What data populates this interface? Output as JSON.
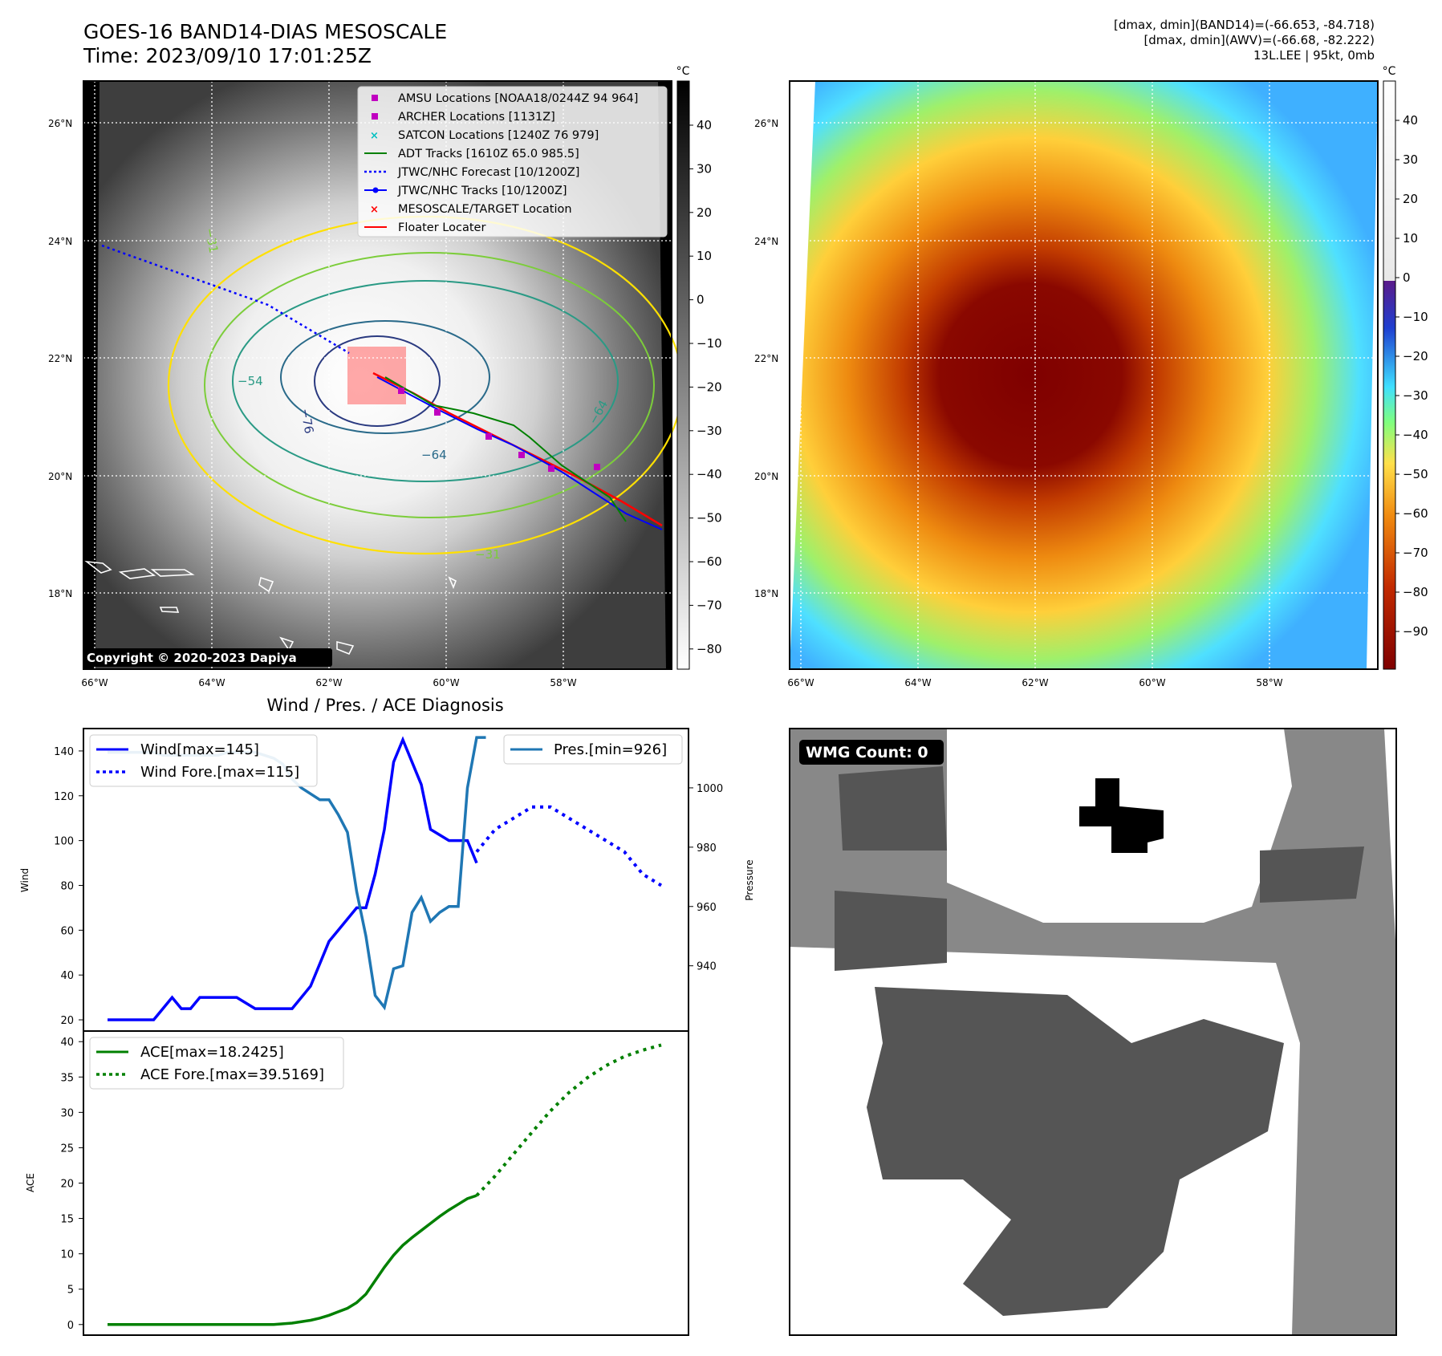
{
  "header": {
    "title_line1": "GOES-16 BAND14-DIAS MESOSCALE",
    "title_line2": "Time: 2023/09/10 17:01:25Z",
    "stats_line1": "[dmax, dmin](BAND14)=(-66.653, -84.718)",
    "stats_line2": "[dmax, dmin](AWV)=(-66.68, -82.222)",
    "stats_line3": "13L.LEE | 95kt, 0mb"
  },
  "map_left": {
    "colorbar_unit": "°C",
    "colorbar_ticks": [
      "40",
      "30",
      "20",
      "10",
      "0",
      "−10",
      "−20",
      "−30",
      "−40",
      "−50",
      "−60",
      "−70",
      "−80"
    ],
    "lat_labels": [
      "26°N",
      "24°N",
      "22°N",
      "20°N",
      "18°N"
    ],
    "lon_labels": [
      "66°W",
      "64°W",
      "62°W",
      "60°W",
      "58°W"
    ],
    "contour_labels": [
      "−31",
      "−54",
      "−76",
      "−64",
      "−54",
      "−64",
      "−31"
    ],
    "copyright": "Copyright © 2020-2023 Dapiya",
    "legend": [
      {
        "label": "AMSU Locations [NOAA18/0244Z 94 964]",
        "marker": "square",
        "color": "#c000c0"
      },
      {
        "label": "ARCHER Locations [1131Z]",
        "marker": "square",
        "color": "#c000c0"
      },
      {
        "label": "SATCON Locations [1240Z 76 979]",
        "marker": "x",
        "color": "#00c0c0"
      },
      {
        "label": "ADT Tracks [1610Z 65.0 985.5]",
        "marker": "line",
        "color": "#008000"
      },
      {
        "label": "JTWC/NHC Forecast [10/1200Z]",
        "marker": "dotted",
        "color": "#0000ff"
      },
      {
        "label": "JTWC/NHC Tracks [10/1200Z]",
        "marker": "line-dot",
        "color": "#0000ff"
      },
      {
        "label": "MESOSCALE/TARGET Location",
        "marker": "x",
        "color": "#ff0000"
      },
      {
        "label": "Floater Locater",
        "marker": "line",
        "color": "#ff0000"
      }
    ]
  },
  "map_right": {
    "colorbar_unit": "°C",
    "colorbar_ticks": [
      "40",
      "30",
      "20",
      "10",
      "0",
      "−10",
      "−20",
      "−30",
      "−40",
      "−50",
      "−60",
      "−70",
      "−80",
      "−90"
    ],
    "lat_labels": [
      "26°N",
      "24°N",
      "22°N",
      "20°N",
      "18°N"
    ],
    "lon_labels": [
      "66°W",
      "64°W",
      "62°W",
      "60°W",
      "58°W"
    ]
  },
  "wmg": {
    "label": "WMG Count: 0"
  },
  "chart_data": [
    {
      "type": "line",
      "title": "Wind / Pres. / ACE Diagnosis",
      "ylabel": "Wind",
      "ylabel_right": "Pressure",
      "ylim": [
        15,
        150
      ],
      "ylim_right": [
        918,
        1020
      ],
      "yticks": [
        20,
        40,
        60,
        80,
        100,
        120,
        140
      ],
      "yticks_right": [
        940,
        960,
        980,
        1000
      ],
      "series": [
        {
          "name": "Wind[max=145]",
          "color": "#0000ff",
          "style": "solid",
          "axis": "left",
          "x": [
            0,
            3,
            5,
            7,
            8,
            9,
            10,
            12,
            14,
            16,
            18,
            20,
            22,
            24,
            25,
            26,
            27,
            28,
            29,
            30,
            31,
            32,
            34,
            35,
            37,
            39,
            40
          ],
          "y": [
            20,
            20,
            20,
            30,
            25,
            25,
            30,
            30,
            30,
            25,
            25,
            25,
            35,
            55,
            60,
            65,
            70,
            70,
            85,
            105,
            135,
            145,
            125,
            105,
            100,
            100,
            90
          ]
        },
        {
          "name": "Wind Fore.[max=115]",
          "color": "#0000ff",
          "style": "dotted",
          "axis": "left",
          "x": [
            40,
            42,
            44,
            46,
            48,
            50,
            52,
            54,
            56,
            58,
            60
          ],
          "y": [
            95,
            105,
            110,
            115,
            115,
            110,
            105,
            100,
            95,
            85,
            80
          ]
        },
        {
          "name": "Pres.[min=926]",
          "color": "#1f77b4",
          "style": "solid",
          "axis": "right",
          "x": [
            0,
            3,
            4,
            5,
            6,
            8,
            10,
            12,
            13,
            14,
            15,
            16,
            18,
            19,
            20,
            21,
            22,
            23,
            24,
            25,
            26,
            27,
            28,
            29,
            30,
            31,
            32,
            33,
            34,
            35,
            36,
            37,
            38,
            39,
            40,
            40.5,
            41
          ],
          "y": [
            1012,
            1012,
            1012,
            1012,
            1011,
            1011,
            1011,
            1011,
            1012,
            1012,
            1012,
            1012,
            1010,
            1008,
            1003,
            1000,
            998,
            996,
            996,
            991,
            985,
            965,
            950,
            930,
            926,
            939,
            940,
            958,
            963,
            955,
            958,
            960,
            960,
            1000,
            1017,
            1017,
            1017
          ]
        }
      ]
    },
    {
      "type": "line",
      "ylabel": "ACE",
      "ylim": [
        -1.5,
        41.5
      ],
      "yticks": [
        0,
        5,
        10,
        15,
        20,
        25,
        30,
        35,
        40
      ],
      "series": [
        {
          "name": "ACE[max=18.2425]",
          "color": "#008000",
          "style": "solid",
          "x": [
            0,
            2,
            4,
            6,
            8,
            10,
            12,
            14,
            16,
            18,
            19,
            20,
            21,
            22,
            23,
            24,
            25,
            26,
            27,
            28,
            29,
            30,
            31,
            32,
            33,
            34,
            35,
            36,
            37,
            38,
            39,
            40
          ],
          "y": [
            0,
            0,
            0,
            0,
            0,
            0,
            0,
            0,
            0,
            0,
            0.1,
            0.2,
            0.4,
            0.6,
            0.9,
            1.3,
            1.8,
            2.3,
            3.1,
            4.3,
            6.2,
            8.1,
            9.8,
            11.2,
            12.3,
            13.3,
            14.3,
            15.3,
            16.2,
            17.0,
            17.8,
            18.24
          ]
        },
        {
          "name": "ACE Fore.[max=39.5169]",
          "color": "#008000",
          "style": "dotted",
          "x": [
            40,
            42,
            44,
            46,
            48,
            50,
            52,
            54,
            56,
            58,
            60
          ],
          "y": [
            18.24,
            21.0,
            24.1,
            27.2,
            30.2,
            32.8,
            34.9,
            36.6,
            37.9,
            38.8,
            39.52
          ]
        }
      ]
    }
  ]
}
